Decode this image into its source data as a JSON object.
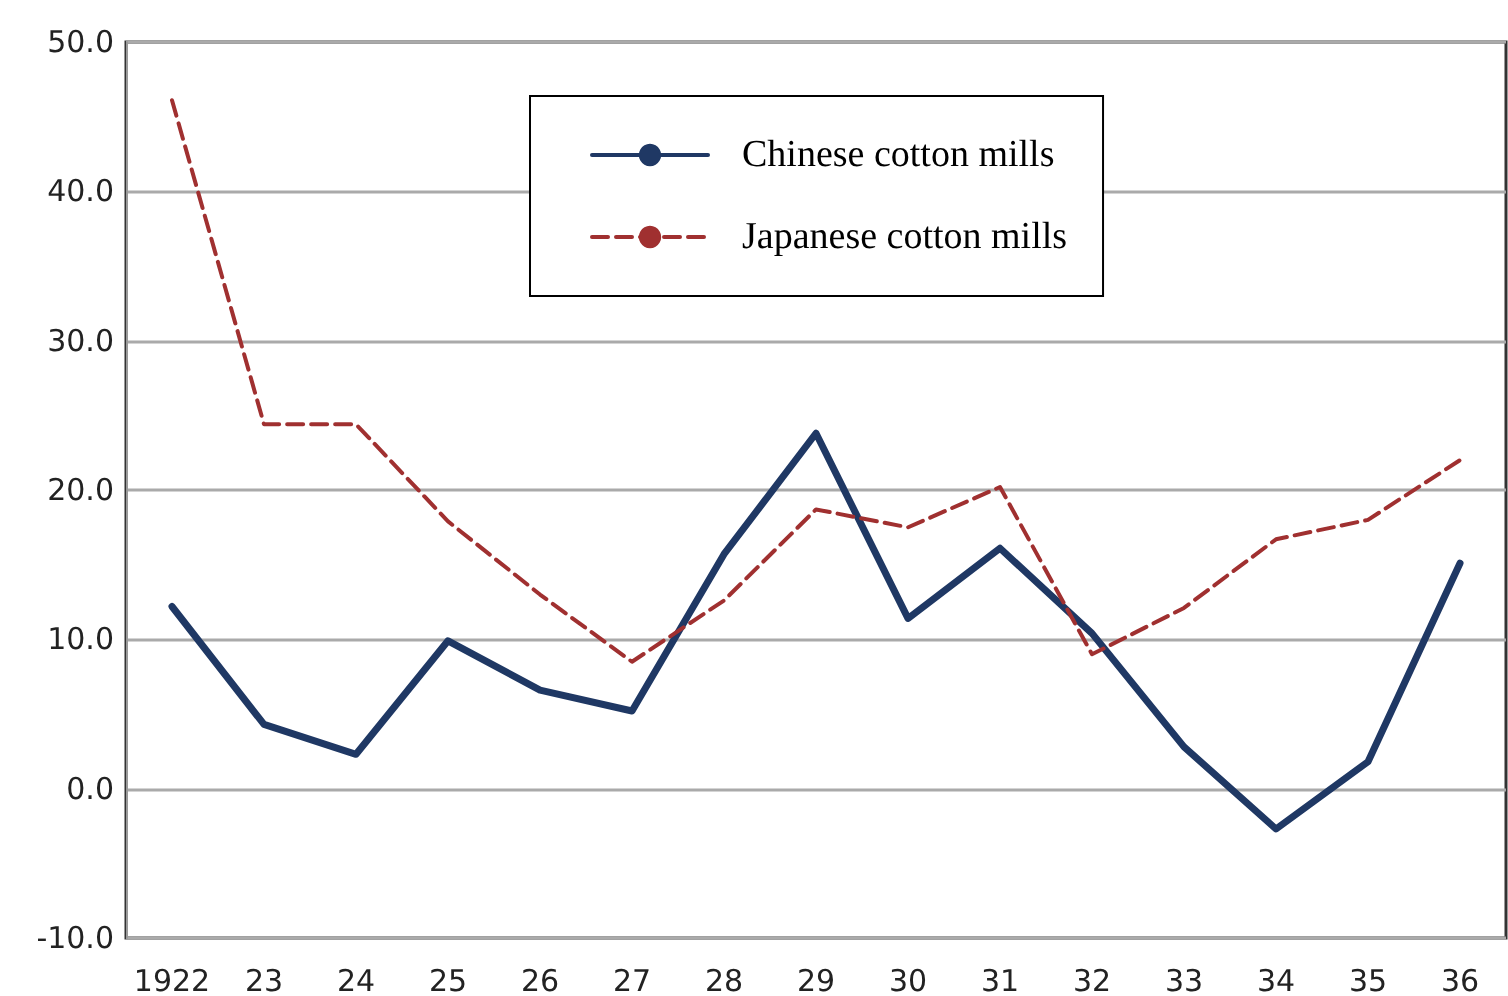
{
  "chart_data": {
    "type": "line",
    "categories": [
      "1922",
      "23",
      "24",
      "25",
      "26",
      "27",
      "28",
      "29",
      "30",
      "31",
      "32",
      "33",
      "34",
      "35",
      "36"
    ],
    "series": [
      {
        "name": "Chinese cotton mills",
        "color": "#1f3864",
        "line_style": "solid",
        "values": [
          12.2,
          4.3,
          2.3,
          9.9,
          6.6,
          5.2,
          15.7,
          23.8,
          11.4,
          16.1,
          10.4,
          2.8,
          -2.7,
          1.8,
          15.1
        ]
      },
      {
        "name": "Japanese cotton mills",
        "color": "#a03030",
        "line_style": "dashed",
        "values": [
          46.1,
          24.4,
          24.4,
          17.9,
          13.0,
          8.5,
          12.6,
          18.7,
          17.5,
          20.2,
          9.0,
          12.1,
          16.7,
          18.0,
          22.0
        ]
      }
    ],
    "ylim": [
      -10,
      50
    ],
    "yticks": [
      {
        "value": -10,
        "label": "-10.0"
      },
      {
        "value": 0,
        "label": "0.0"
      },
      {
        "value": 10,
        "label": "10.0"
      },
      {
        "value": 20,
        "label": "20.0"
      },
      {
        "value": 30,
        "label": "30.0"
      },
      {
        "value": 40,
        "label": "40.0"
      },
      {
        "value": 50,
        "label": "50.0"
      }
    ],
    "grid": "y",
    "legend": "top",
    "marker": "none"
  }
}
